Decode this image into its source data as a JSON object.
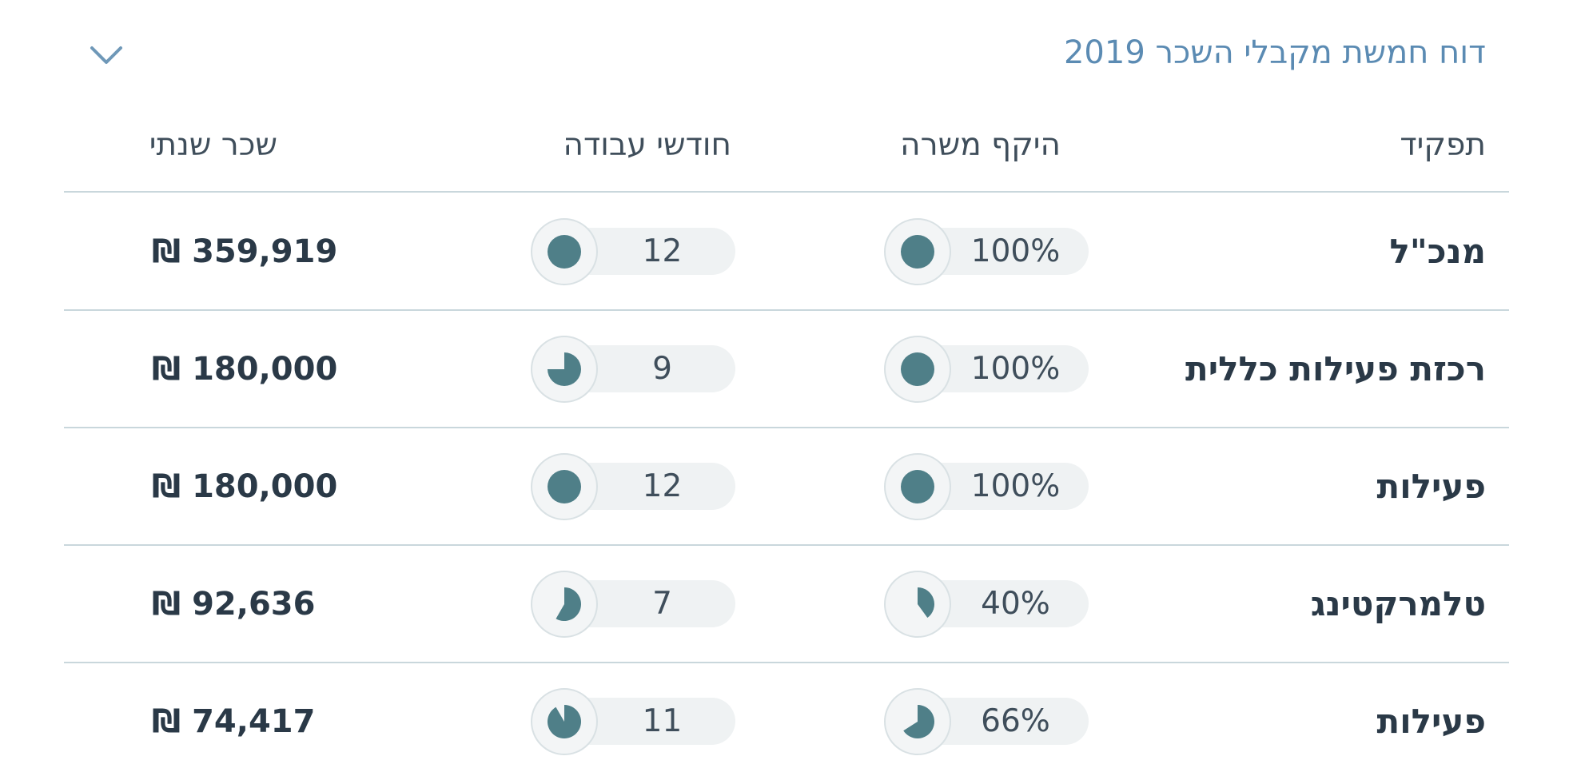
{
  "report": {
    "title": "דוח חמשת מקבלי השכר 2019",
    "collapse_icon": "chevron-down-icon"
  },
  "columns": {
    "role": "תפקיד",
    "scope": "היקף משרה",
    "months": "חודשי עבודה",
    "salary": "שכר שנתי"
  },
  "rows": [
    {
      "role": "מנכ\"ל",
      "scope": "100%",
      "scope_fraction": 1.0,
      "months": "12",
      "months_fraction": 1.0,
      "salary": "₪ 359,919"
    },
    {
      "role": "רכזת פעילות כללית",
      "scope": "100%",
      "scope_fraction": 1.0,
      "months": "9",
      "months_fraction": 0.75,
      "salary": "₪ 180,000"
    },
    {
      "role": "פעילות",
      "scope": "100%",
      "scope_fraction": 1.0,
      "months": "12",
      "months_fraction": 1.0,
      "salary": "₪ 180,000"
    },
    {
      "role": "טלמרקטינג",
      "scope": "40%",
      "scope_fraction": 0.4,
      "months": "7",
      "months_fraction": 0.5833,
      "salary": "₪ 92,636"
    },
    {
      "role": "פעילות",
      "scope": "66%",
      "scope_fraction": 0.66,
      "months": "11",
      "months_fraction": 0.9167,
      "salary": "₪ 74,417"
    }
  ],
  "colors": {
    "accent": "#4f7f88",
    "title": "#5b8bb3"
  }
}
